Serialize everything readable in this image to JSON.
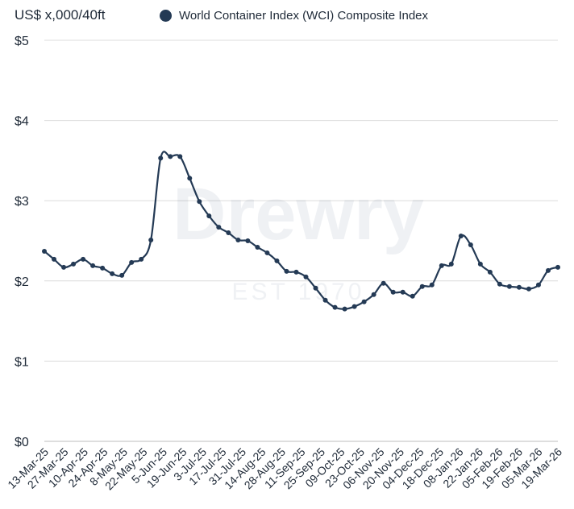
{
  "chart_data": {
    "type": "line",
    "unit_label": "US$ x,000/40ft",
    "title": "",
    "xlabel": "",
    "ylabel": "",
    "ylim": [
      0,
      5
    ],
    "y_ticks": [
      "$0",
      "$1",
      "$2",
      "$3",
      "$4",
      "$5"
    ],
    "grid": true,
    "legend_position": "top",
    "watermark": [
      "Drewry",
      "EST 1970"
    ],
    "x_tick_labels": [
      "13-Mar-25",
      "27-Mar-25",
      "10-Apr-25",
      "24-Apr-25",
      "8-May-25",
      "22-May-25",
      "5-Jun-25",
      "19-Jun-25",
      "3-Jul-25",
      "17-Jul-25",
      "31-Jul-25",
      "14-Aug-25",
      "28-Aug-25",
      "11-Sep-25",
      "25-Sep-25",
      "09-Oct-25",
      "23-Oct-25",
      "06-Nov-25",
      "20-Nov-25",
      "04-Dec-25",
      "18-Dec-25",
      "08-Jan-26",
      "22-Jan-26",
      "05-Feb-26",
      "19-Feb-26",
      "05-Mar-26",
      "19-Mar-26"
    ],
    "series": [
      {
        "name": "World Container Index (WCI) Composite Index",
        "color": "#243a55",
        "values": [
          2.37,
          2.27,
          2.17,
          2.21,
          2.27,
          2.19,
          2.16,
          2.09,
          2.07,
          2.23,
          2.27,
          2.51,
          3.53,
          3.55,
          3.55,
          3.28,
          2.99,
          2.81,
          2.67,
          2.6,
          2.51,
          2.5,
          2.42,
          2.35,
          2.25,
          2.12,
          2.11,
          2.05,
          1.91,
          1.76,
          1.67,
          1.65,
          1.68,
          1.74,
          1.83,
          1.97,
          1.86,
          1.86,
          1.81,
          1.93,
          1.95,
          2.19,
          2.21,
          2.56,
          2.45,
          2.21,
          2.11,
          1.96,
          1.93,
          1.92,
          1.9,
          1.95,
          2.13,
          2.17
        ]
      }
    ]
  }
}
